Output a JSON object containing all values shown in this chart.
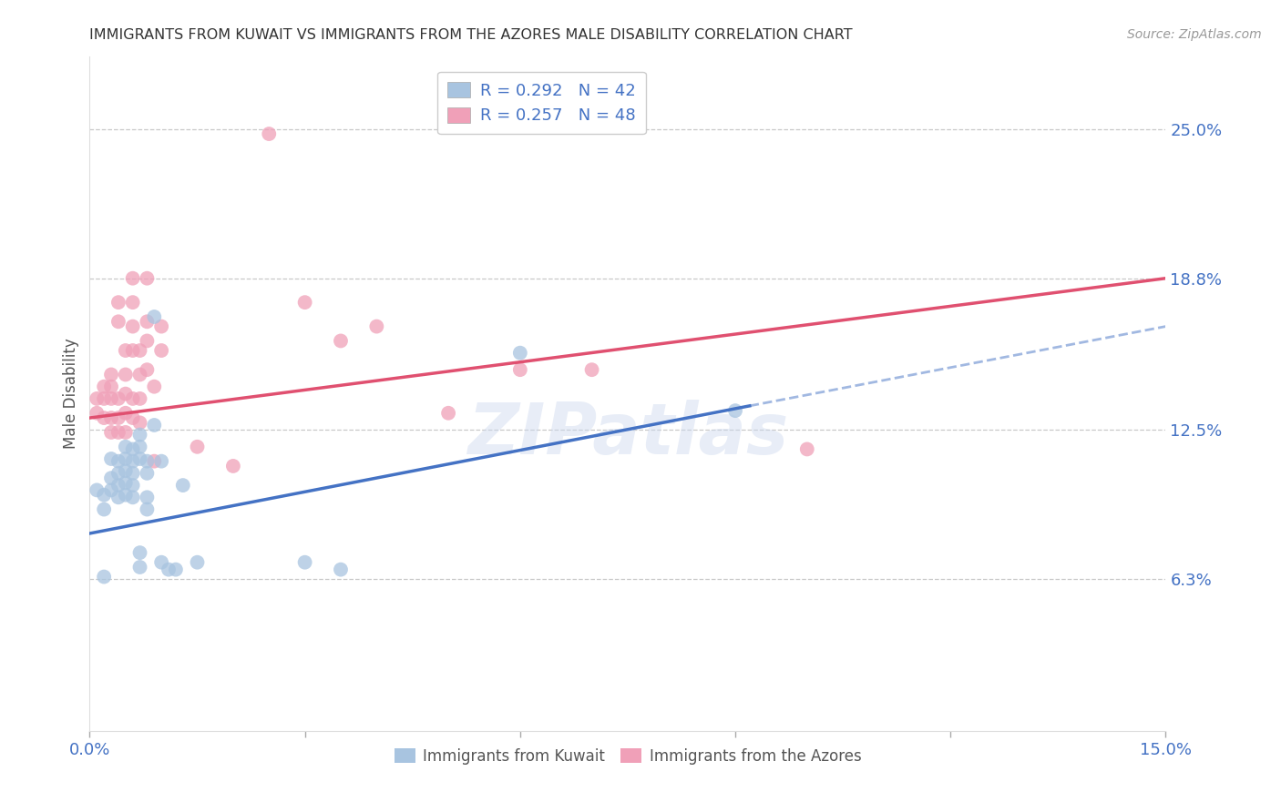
{
  "title": "IMMIGRANTS FROM KUWAIT VS IMMIGRANTS FROM THE AZORES MALE DISABILITY CORRELATION CHART",
  "source": "Source: ZipAtlas.com",
  "ylabel": "Male Disability",
  "x_min": 0.0,
  "x_max": 0.15,
  "y_min": 0.0,
  "y_max": 0.28,
  "y_tick_labels_right": [
    "6.3%",
    "12.5%",
    "18.8%",
    "25.0%"
  ],
  "y_tick_vals_right": [
    0.063,
    0.125,
    0.188,
    0.25
  ],
  "gridline_color": "#c8c8c8",
  "background_color": "#ffffff",
  "kuwait_color": "#a8c4e0",
  "azores_color": "#f0a0b8",
  "kuwait_line_color": "#4472c4",
  "azores_line_color": "#e05070",
  "legend_R_kuwait": "R = 0.292",
  "legend_N_kuwait": "N = 42",
  "legend_R_azores": "R = 0.257",
  "legend_N_azores": "N = 48",
  "watermark": "ZIPatlas",
  "kuwait_points": [
    [
      0.001,
      0.1
    ],
    [
      0.002,
      0.098
    ],
    [
      0.002,
      0.092
    ],
    [
      0.003,
      0.113
    ],
    [
      0.003,
      0.105
    ],
    [
      0.003,
      0.1
    ],
    [
      0.004,
      0.112
    ],
    [
      0.004,
      0.107
    ],
    [
      0.004,
      0.102
    ],
    [
      0.004,
      0.097
    ],
    [
      0.005,
      0.118
    ],
    [
      0.005,
      0.113
    ],
    [
      0.005,
      0.108
    ],
    [
      0.005,
      0.103
    ],
    [
      0.005,
      0.098
    ],
    [
      0.006,
      0.117
    ],
    [
      0.006,
      0.112
    ],
    [
      0.006,
      0.107
    ],
    [
      0.006,
      0.102
    ],
    [
      0.006,
      0.097
    ],
    [
      0.007,
      0.123
    ],
    [
      0.007,
      0.118
    ],
    [
      0.007,
      0.113
    ],
    [
      0.007,
      0.074
    ],
    [
      0.007,
      0.068
    ],
    [
      0.008,
      0.112
    ],
    [
      0.008,
      0.107
    ],
    [
      0.008,
      0.097
    ],
    [
      0.008,
      0.092
    ],
    [
      0.009,
      0.172
    ],
    [
      0.009,
      0.127
    ],
    [
      0.01,
      0.112
    ],
    [
      0.01,
      0.07
    ],
    [
      0.011,
      0.067
    ],
    [
      0.012,
      0.067
    ],
    [
      0.013,
      0.102
    ],
    [
      0.015,
      0.07
    ],
    [
      0.03,
      0.07
    ],
    [
      0.035,
      0.067
    ],
    [
      0.06,
      0.157
    ],
    [
      0.09,
      0.133
    ],
    [
      0.002,
      0.064
    ]
  ],
  "azores_points": [
    [
      0.001,
      0.138
    ],
    [
      0.001,
      0.132
    ],
    [
      0.002,
      0.143
    ],
    [
      0.002,
      0.138
    ],
    [
      0.002,
      0.13
    ],
    [
      0.003,
      0.148
    ],
    [
      0.003,
      0.143
    ],
    [
      0.003,
      0.138
    ],
    [
      0.003,
      0.13
    ],
    [
      0.003,
      0.124
    ],
    [
      0.004,
      0.178
    ],
    [
      0.004,
      0.17
    ],
    [
      0.004,
      0.138
    ],
    [
      0.004,
      0.13
    ],
    [
      0.004,
      0.124
    ],
    [
      0.005,
      0.158
    ],
    [
      0.005,
      0.148
    ],
    [
      0.005,
      0.14
    ],
    [
      0.005,
      0.132
    ],
    [
      0.005,
      0.124
    ],
    [
      0.006,
      0.188
    ],
    [
      0.006,
      0.178
    ],
    [
      0.006,
      0.168
    ],
    [
      0.006,
      0.158
    ],
    [
      0.006,
      0.138
    ],
    [
      0.006,
      0.13
    ],
    [
      0.007,
      0.158
    ],
    [
      0.007,
      0.148
    ],
    [
      0.007,
      0.138
    ],
    [
      0.007,
      0.128
    ],
    [
      0.008,
      0.188
    ],
    [
      0.008,
      0.17
    ],
    [
      0.008,
      0.162
    ],
    [
      0.008,
      0.15
    ],
    [
      0.009,
      0.143
    ],
    [
      0.009,
      0.112
    ],
    [
      0.01,
      0.168
    ],
    [
      0.01,
      0.158
    ],
    [
      0.015,
      0.118
    ],
    [
      0.02,
      0.11
    ],
    [
      0.025,
      0.248
    ],
    [
      0.03,
      0.178
    ],
    [
      0.035,
      0.162
    ],
    [
      0.04,
      0.168
    ],
    [
      0.05,
      0.132
    ],
    [
      0.06,
      0.15
    ],
    [
      0.07,
      0.15
    ],
    [
      0.1,
      0.117
    ]
  ],
  "kuwait_line": {
    "x0": 0.0,
    "y0": 0.082,
    "x1": 0.092,
    "y1": 0.135
  },
  "kuwait_dashed_line": {
    "x0": 0.092,
    "y0": 0.135,
    "x1": 0.15,
    "y1": 0.168
  },
  "azores_line": {
    "x0": 0.0,
    "y0": 0.13,
    "x1": 0.15,
    "y1": 0.188
  }
}
